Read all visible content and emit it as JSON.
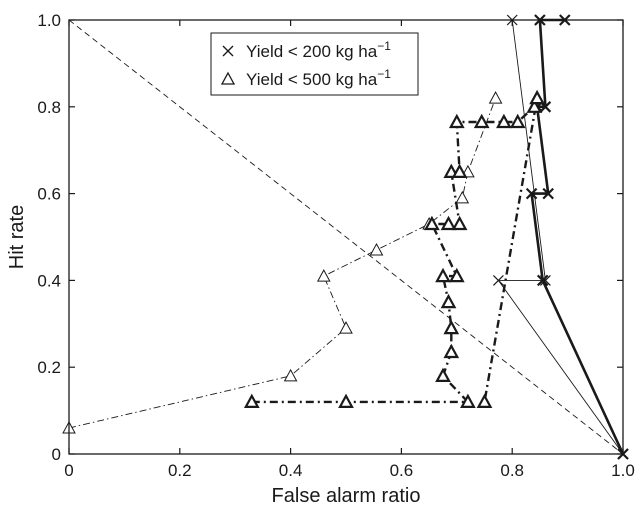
{
  "chart_data": {
    "type": "line",
    "title": "",
    "xlabel": "False alarm ratio",
    "ylabel": "Hit rate",
    "xlim": [
      0,
      1
    ],
    "ylim": [
      0,
      1
    ],
    "x_ticks": [
      "0",
      "0.2",
      "0.4",
      "0.6",
      "0.8",
      "1.0"
    ],
    "y_ticks": [
      "0",
      "0.2",
      "0.4",
      "0.6",
      "0.8",
      "1.0"
    ],
    "grid": false,
    "legend_position": "top-center",
    "legend": {
      "items": [
        {
          "marker": "x",
          "text": "Yield < 200 kg ha",
          "sup": "−1"
        },
        {
          "marker": "triangle",
          "text": "Yield < 500 kg ha",
          "sup": "−1"
        }
      ]
    },
    "reference_line": {
      "style": "dashed",
      "points": [
        [
          0,
          1
        ],
        [
          1,
          0
        ]
      ]
    },
    "series": [
      {
        "marker": "x",
        "line": "thin-solid",
        "points": [
          [
            1.0,
            0.0
          ],
          [
            0.775,
            0.4
          ],
          [
            0.86,
            0.4
          ],
          [
            0.8,
            1.0
          ]
        ]
      },
      {
        "marker": "x",
        "line": "thick-solid",
        "points": [
          [
            1.0,
            0.0
          ],
          [
            0.855,
            0.4
          ],
          [
            0.835,
            0.6
          ],
          [
            0.865,
            0.6
          ],
          [
            0.845,
            0.8
          ],
          [
            0.86,
            0.8
          ],
          [
            0.85,
            1.0
          ],
          [
            0.895,
            1.0
          ]
        ]
      },
      {
        "marker": "triangle",
        "line": "thin-dashdot",
        "points": [
          [
            0.0,
            0.06
          ],
          [
            0.4,
            0.18
          ],
          [
            0.5,
            0.29
          ],
          [
            0.46,
            0.41
          ],
          [
            0.555,
            0.47
          ],
          [
            0.65,
            0.53
          ],
          [
            0.71,
            0.59
          ],
          [
            0.72,
            0.65
          ],
          [
            0.77,
            0.82
          ]
        ]
      },
      {
        "marker": "triangle",
        "line": "thick-dashdot",
        "points": [
          [
            0.33,
            0.12
          ],
          [
            0.5,
            0.12
          ],
          [
            0.72,
            0.12
          ],
          [
            0.675,
            0.18
          ],
          [
            0.69,
            0.235
          ],
          [
            0.69,
            0.29
          ],
          [
            0.685,
            0.35
          ],
          [
            0.675,
            0.41
          ],
          [
            0.7,
            0.41
          ],
          [
            0.655,
            0.53
          ],
          [
            0.685,
            0.53
          ],
          [
            0.705,
            0.53
          ],
          [
            0.69,
            0.65
          ],
          [
            0.705,
            0.65
          ],
          [
            0.7,
            0.765
          ],
          [
            0.745,
            0.765
          ],
          [
            0.785,
            0.765
          ],
          [
            0.81,
            0.765
          ],
          [
            0.84,
            0.8
          ],
          [
            0.845,
            0.82
          ],
          [
            0.75,
            0.12
          ]
        ]
      }
    ]
  }
}
